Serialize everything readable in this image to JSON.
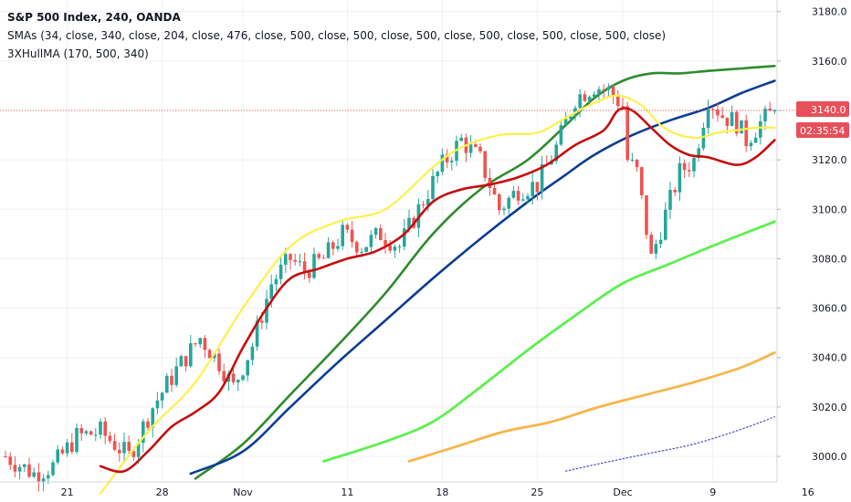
{
  "legend": {
    "symbol": "S&P 500 Index, 240, OANDA",
    "smas": "SMAs (34, close, 340, close, 204, close, 476, close, 500, close, 500, close, 500, close, 500, close, 500, close, 500, close)",
    "hull": "3XHullMA (170, 500, 340)"
  },
  "colors": {
    "up": "#26a69a",
    "down": "#ef5350",
    "yellow": "#fff04a",
    "red": "#c40f0f",
    "darkgreen": "#2e8b2e",
    "blue": "#0b3d91",
    "lime": "#5cf050",
    "orange": "#f7b54a",
    "purple": "#4a4ad0",
    "price_line": "#ef5350",
    "price_badge": "#e7505a",
    "grid": "#eef0f3"
  },
  "price_badge": {
    "price": "3140.0",
    "countdown": "02:35:54"
  },
  "chart_data": {
    "type": "candlestick",
    "instrument": "S&P 500 Index, 240, OANDA",
    "y_axis": {
      "min": 2990,
      "max": 3186,
      "ticks": [
        {
          "value": 3000,
          "label": "3000.0"
        },
        {
          "value": 3020,
          "label": "3020.0"
        },
        {
          "value": 3040,
          "label": "3040.0"
        },
        {
          "value": 3060,
          "label": "3060.0"
        },
        {
          "value": 3080,
          "label": "3080.0"
        },
        {
          "value": 3100,
          "label": "3100.0"
        },
        {
          "value": 3120,
          "label": "3120.0"
        },
        {
          "value": 3140,
          "label": "3140.0"
        },
        {
          "value": 3160,
          "label": "3160.0"
        },
        {
          "value": 3180,
          "label": "3180.0"
        }
      ]
    },
    "x_axis": {
      "bar_count": 138,
      "ticks": [
        {
          "bar": 13,
          "label": "21"
        },
        {
          "bar": 33,
          "label": "28"
        },
        {
          "bar": 50,
          "label": "Nov"
        },
        {
          "bar": 72,
          "label": "11"
        },
        {
          "bar": 92,
          "label": "18"
        },
        {
          "bar": 112,
          "label": "25"
        },
        {
          "bar": 130,
          "label": "Dec"
        },
        {
          "bar": 149,
          "label": "9"
        },
        {
          "bar": 169,
          "label": "16"
        }
      ]
    },
    "last_price": 3140.0,
    "keypoints": [
      [
        0,
        3000
      ],
      [
        6,
        2993
      ],
      [
        10,
        2996
      ],
      [
        15,
        3008
      ],
      [
        20,
        3010
      ],
      [
        26,
        3000
      ],
      [
        31,
        3020
      ],
      [
        36,
        3035
      ],
      [
        41,
        3048
      ],
      [
        45,
        3038
      ],
      [
        48,
        3028
      ],
      [
        52,
        3045
      ],
      [
        56,
        3070
      ],
      [
        60,
        3080
      ],
      [
        63,
        3075
      ],
      [
        67,
        3080
      ],
      [
        71,
        3090
      ],
      [
        75,
        3085
      ],
      [
        79,
        3090
      ],
      [
        83,
        3085
      ],
      [
        87,
        3100
      ],
      [
        92,
        3118
      ],
      [
        96,
        3128
      ],
      [
        100,
        3120
      ],
      [
        104,
        3100
      ],
      [
        108,
        3108
      ],
      [
        112,
        3110
      ],
      [
        116,
        3125
      ],
      [
        120,
        3145
      ],
      [
        124,
        3150
      ],
      [
        127,
        3148
      ],
      [
        130,
        3142
      ],
      [
        131,
        3120
      ],
      [
        133,
        3115
      ],
      [
        136,
        3080
      ],
      [
        139,
        3098
      ],
      [
        142,
        3115
      ],
      [
        145,
        3120
      ],
      [
        148,
        3145
      ],
      [
        151,
        3138
      ],
      [
        154,
        3135
      ],
      [
        156,
        3128
      ],
      [
        159,
        3135
      ],
      [
        162,
        3140
      ]
    ],
    "series": [
      {
        "name": "yellow",
        "color_key": "yellow",
        "width": 2.2,
        "points": [
          [
            20,
            2985
          ],
          [
            30,
            3010
          ],
          [
            40,
            3030
          ],
          [
            50,
            3060
          ],
          [
            60,
            3085
          ],
          [
            70,
            3095
          ],
          [
            80,
            3100
          ],
          [
            90,
            3117
          ],
          [
            96,
            3125
          ],
          [
            104,
            3130
          ],
          [
            112,
            3131
          ],
          [
            118,
            3137
          ],
          [
            124,
            3143
          ],
          [
            129,
            3146
          ],
          [
            134,
            3142
          ],
          [
            138,
            3134
          ],
          [
            142,
            3130
          ],
          [
            146,
            3129
          ],
          [
            150,
            3131
          ],
          [
            154,
            3132
          ],
          [
            158,
            3133
          ],
          [
            162,
            3133
          ]
        ]
      },
      {
        "name": "red",
        "color_key": "red",
        "width": 2.6,
        "points": [
          [
            20,
            2996
          ],
          [
            25,
            2994
          ],
          [
            30,
            3002
          ],
          [
            35,
            3012
          ],
          [
            40,
            3018
          ],
          [
            45,
            3026
          ],
          [
            50,
            3044
          ],
          [
            55,
            3060
          ],
          [
            60,
            3072
          ],
          [
            66,
            3076
          ],
          [
            72,
            3080
          ],
          [
            78,
            3083
          ],
          [
            84,
            3090
          ],
          [
            90,
            3103
          ],
          [
            96,
            3108
          ],
          [
            102,
            3110
          ],
          [
            108,
            3113
          ],
          [
            114,
            3118
          ],
          [
            120,
            3126
          ],
          [
            126,
            3132
          ],
          [
            129,
            3140
          ],
          [
            132,
            3140
          ],
          [
            136,
            3133
          ],
          [
            140,
            3126
          ],
          [
            144,
            3122
          ],
          [
            148,
            3121
          ],
          [
            154,
            3118
          ],
          [
            158,
            3121
          ],
          [
            162,
            3128
          ]
        ]
      },
      {
        "name": "dark green",
        "color_key": "darkgreen",
        "width": 2.6,
        "points": [
          [
            40,
            2991
          ],
          [
            50,
            3005
          ],
          [
            60,
            3025
          ],
          [
            70,
            3045
          ],
          [
            80,
            3066
          ],
          [
            90,
            3090
          ],
          [
            100,
            3108
          ],
          [
            110,
            3120
          ],
          [
            118,
            3134
          ],
          [
            124,
            3145
          ],
          [
            130,
            3152
          ],
          [
            136,
            3155
          ],
          [
            142,
            3155
          ],
          [
            148,
            3156
          ],
          [
            155,
            3157
          ],
          [
            162,
            3158
          ]
        ]
      },
      {
        "name": "blue",
        "color_key": "blue",
        "width": 2.6,
        "points": [
          [
            39,
            2993
          ],
          [
            50,
            3002
          ],
          [
            60,
            3020
          ],
          [
            70,
            3038
          ],
          [
            80,
            3055
          ],
          [
            90,
            3072
          ],
          [
            100,
            3088
          ],
          [
            110,
            3103
          ],
          [
            118,
            3114
          ],
          [
            124,
            3122
          ],
          [
            132,
            3130
          ],
          [
            140,
            3136
          ],
          [
            148,
            3141
          ],
          [
            155,
            3147
          ],
          [
            162,
            3152
          ]
        ]
      },
      {
        "name": "lime",
        "color_key": "lime",
        "width": 2.8,
        "points": [
          [
            67,
            2998
          ],
          [
            80,
            3006
          ],
          [
            90,
            3014
          ],
          [
            100,
            3028
          ],
          [
            110,
            3043
          ],
          [
            120,
            3057
          ],
          [
            130,
            3070
          ],
          [
            140,
            3078
          ],
          [
            150,
            3086
          ],
          [
            162,
            3095
          ]
        ]
      },
      {
        "name": "orange",
        "color_key": "orange",
        "width": 2.8,
        "points": [
          [
            85,
            2998
          ],
          [
            95,
            3004
          ],
          [
            105,
            3010
          ],
          [
            115,
            3014
          ],
          [
            125,
            3020
          ],
          [
            135,
            3025
          ],
          [
            145,
            3030
          ],
          [
            155,
            3036
          ],
          [
            162,
            3042
          ]
        ]
      },
      {
        "name": "purple",
        "color_key": "purple",
        "width": 1.2,
        "dotted": true,
        "points": [
          [
            118,
            2994
          ],
          [
            125,
            2997
          ],
          [
            135,
            3001
          ],
          [
            145,
            3005
          ],
          [
            155,
            3011
          ],
          [
            162,
            3016
          ]
        ]
      }
    ]
  }
}
